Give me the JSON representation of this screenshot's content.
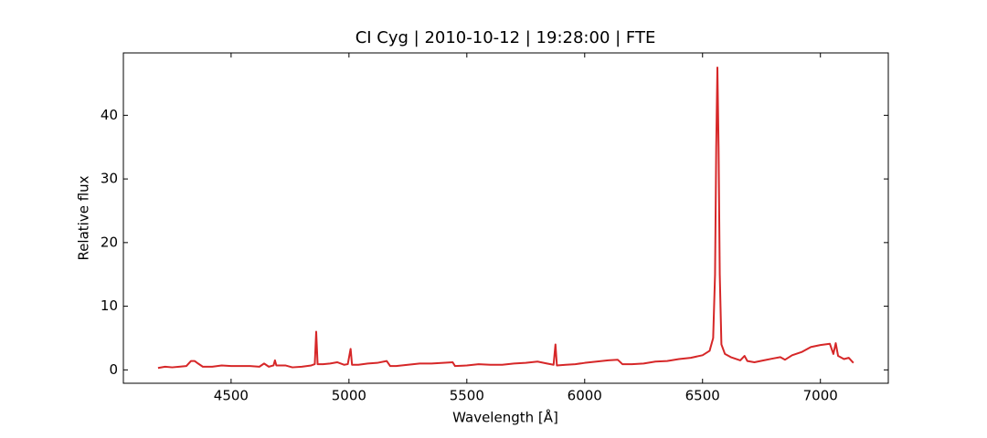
{
  "chart_data": {
    "type": "line",
    "title": "CI Cyg | 2010-10-12 | 19:28:00 | FTE",
    "x_label": "Wavelength [Å]",
    "y_label": "Relative flux",
    "x": [
      4190,
      4220,
      4250,
      4280,
      4310,
      4330,
      4345,
      4360,
      4380,
      4420,
      4460,
      4500,
      4540,
      4580,
      4620,
      4640,
      4660,
      4680,
      4686,
      4692,
      4730,
      4760,
      4800,
      4840,
      4855,
      4861,
      4867,
      4890,
      4920,
      4950,
      4980,
      4995,
      5007,
      5013,
      5040,
      5080,
      5120,
      5160,
      5175,
      5200,
      5250,
      5300,
      5350,
      5400,
      5440,
      5450,
      5500,
      5550,
      5600,
      5650,
      5700,
      5750,
      5800,
      5840,
      5868,
      5876,
      5882,
      5920,
      5960,
      6000,
      6050,
      6100,
      6140,
      6160,
      6200,
      6250,
      6300,
      6350,
      6400,
      6450,
      6500,
      6530,
      6545,
      6553,
      6558,
      6563,
      6568,
      6573,
      6580,
      6595,
      6620,
      6660,
      6678,
      6690,
      6720,
      6760,
      6800,
      6830,
      6850,
      6880,
      6920,
      6960,
      7000,
      7040,
      7055,
      7065,
      7075,
      7100,
      7120,
      7140
    ],
    "series": [
      {
        "name": "CI Cyg",
        "color": "#d62728",
        "values": [
          0.3,
          0.5,
          0.4,
          0.5,
          0.6,
          1.4,
          1.4,
          1.0,
          0.5,
          0.5,
          0.7,
          0.6,
          0.6,
          0.6,
          0.5,
          1.0,
          0.5,
          0.7,
          1.5,
          0.7,
          0.7,
          0.4,
          0.5,
          0.7,
          0.9,
          6.0,
          0.9,
          0.9,
          1.0,
          1.2,
          0.8,
          0.9,
          3.3,
          0.8,
          0.8,
          1.0,
          1.1,
          1.4,
          0.6,
          0.6,
          0.8,
          1.0,
          1.0,
          1.1,
          1.2,
          0.6,
          0.7,
          0.9,
          0.8,
          0.8,
          1.0,
          1.1,
          1.3,
          1.0,
          0.8,
          4.0,
          0.7,
          0.8,
          0.9,
          1.1,
          1.3,
          1.5,
          1.6,
          0.9,
          0.9,
          1.0,
          1.3,
          1.4,
          1.7,
          1.9,
          2.3,
          3.0,
          5.0,
          15,
          35,
          47.5,
          35,
          15,
          4,
          2.5,
          2.0,
          1.5,
          2.2,
          1.4,
          1.2,
          1.5,
          1.8,
          2.0,
          1.6,
          2.3,
          2.8,
          3.6,
          3.9,
          4.1,
          2.5,
          4.2,
          2.2,
          1.7,
          1.9,
          1.1
        ]
      }
    ],
    "xlim": [
      4043,
      7288
    ],
    "xticks": [
      4500,
      5000,
      5500,
      6000,
      6500,
      7000
    ],
    "ylim": [
      -2.1,
      49.8
    ],
    "yticks": [
      0,
      10,
      20,
      30,
      40
    ],
    "grid": false
  }
}
